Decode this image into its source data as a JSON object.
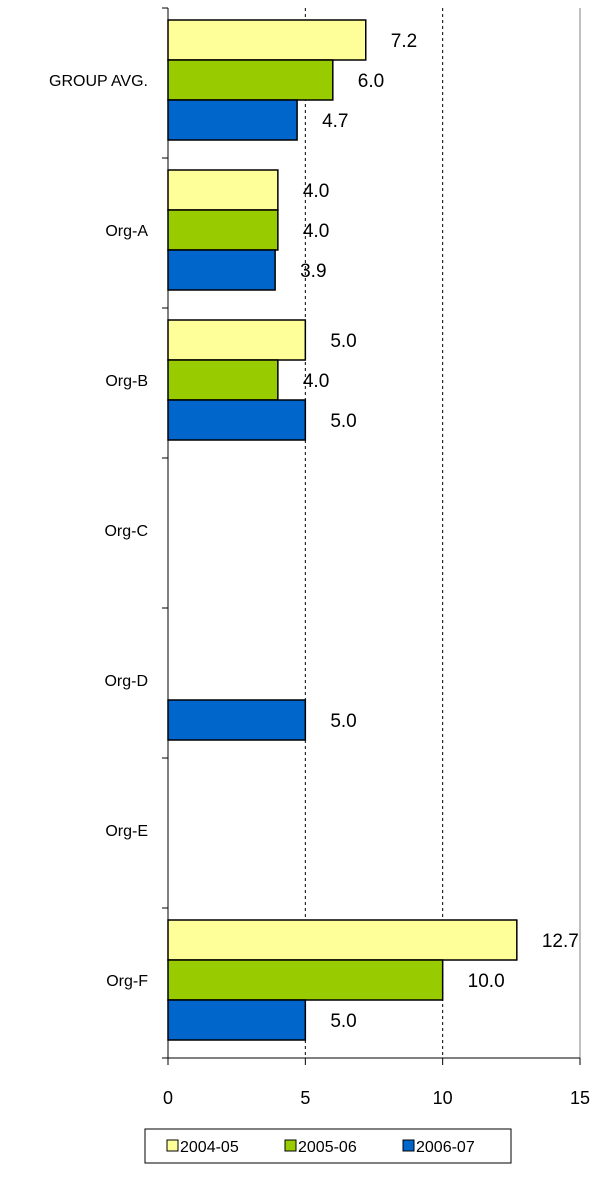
{
  "chart_data": {
    "type": "bar",
    "orientation": "horizontal",
    "categories": [
      "GROUP AVG.",
      "Org-A",
      "Org-B",
      "Org-C",
      "Org-D",
      "Org-E",
      "Org-F"
    ],
    "series": [
      {
        "name": "2004-05",
        "color": "#ffff99",
        "values": [
          7.2,
          4.0,
          5.0,
          null,
          null,
          null,
          12.7
        ]
      },
      {
        "name": "2005-06",
        "color": "#99cc00",
        "values": [
          6.0,
          4.0,
          4.0,
          null,
          null,
          null,
          10.0
        ]
      },
      {
        "name": "2006-07",
        "color": "#0066cc",
        "values": [
          4.7,
          3.9,
          5.0,
          null,
          5.0,
          null,
          5.0
        ]
      }
    ],
    "data_labels": [
      [
        "7.2",
        "4.0",
        "5.0",
        "",
        "",
        "",
        "12.7"
      ],
      [
        "6.0",
        "4.0",
        "4.0",
        "",
        "",
        "",
        "10.0"
      ],
      [
        "4.7",
        "3.9",
        "5.0",
        "",
        "5.0",
        "",
        "5.0"
      ]
    ],
    "xlim": [
      0,
      15
    ],
    "x_ticks": [
      0,
      5,
      10,
      15
    ],
    "x_tick_labels": [
      "0",
      "5",
      "10",
      "15"
    ],
    "gridlines": "vertical-dashed",
    "legend_position": "bottom"
  }
}
